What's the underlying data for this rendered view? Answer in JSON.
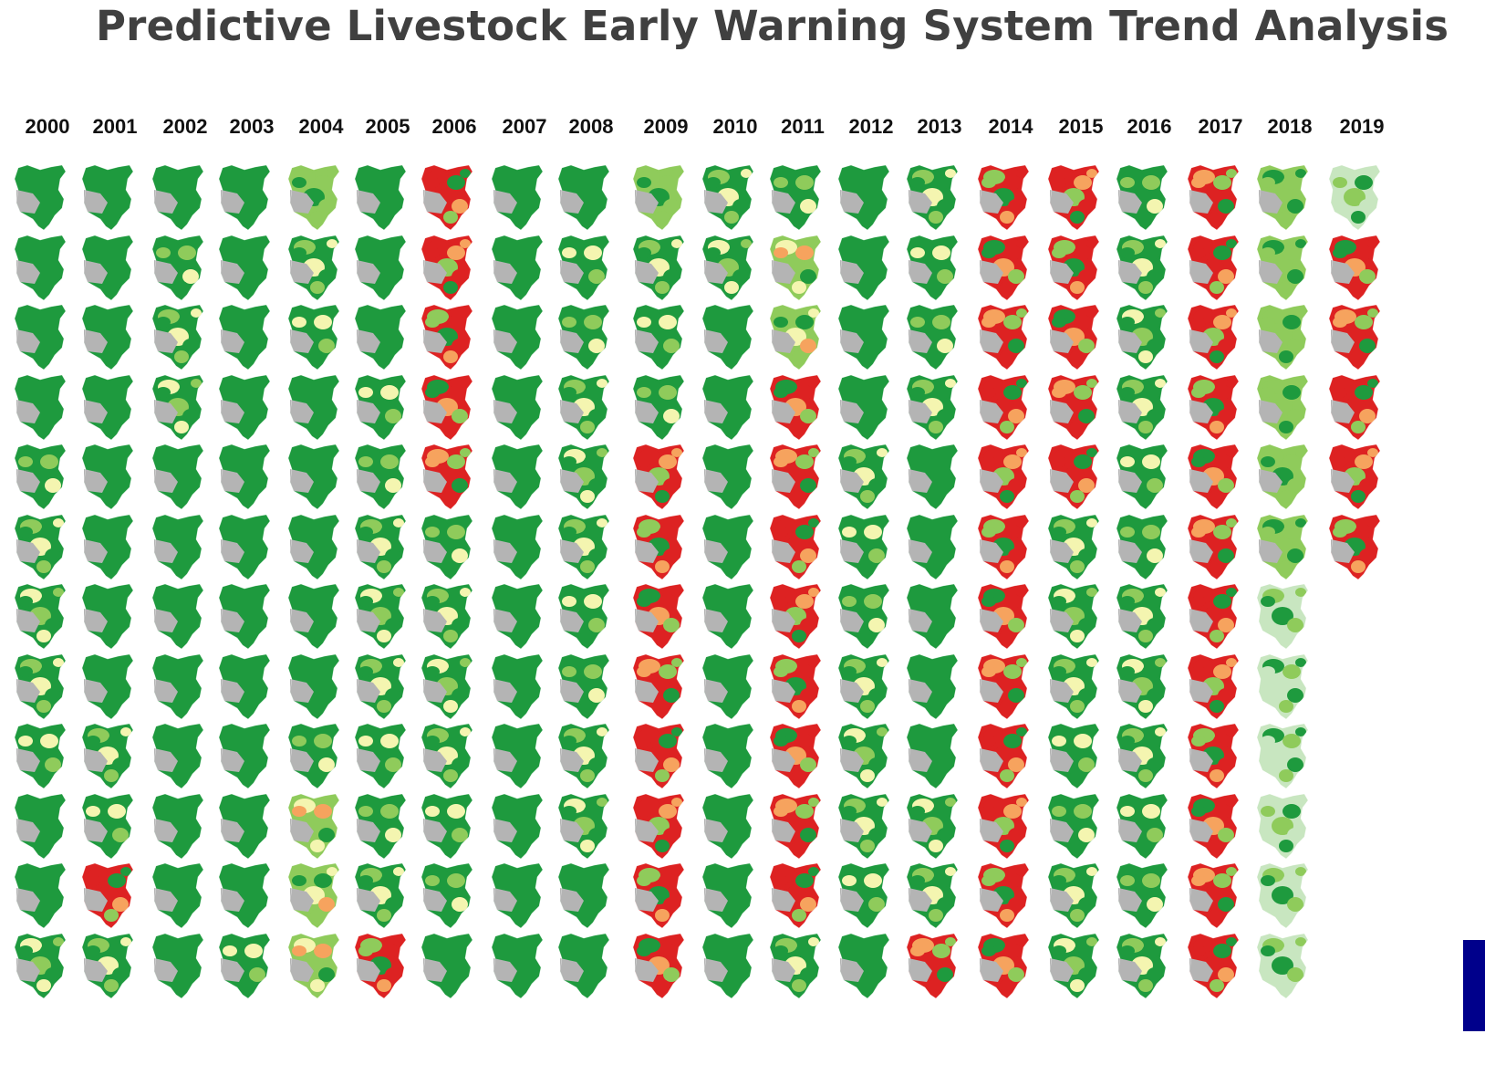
{
  "title": "Predictive Livestock Early Warning System Trend Analysis",
  "years": [
    "2000",
    "2001",
    "2002",
    "2003",
    "2004",
    "2005",
    "2006",
    "2007",
    "2008",
    "2009",
    "2010",
    "2011",
    "2012",
    "2013",
    "2014",
    "2015",
    "2016",
    "2017",
    "2018",
    "2019"
  ],
  "colors": {
    "dark_green": "#1e9a3e",
    "light_green": "#8fcb5b",
    "pale_yellow": "#f4f5b0",
    "orange": "#f6a35e",
    "red": "#dd2222",
    "gray": "#b4b4b4",
    "navy": "#00008b",
    "pale_green_2019": "#c8e6c0"
  },
  "map_condition_grid": [
    [
      "G",
      "G",
      "G",
      "G",
      "L",
      "G",
      "R",
      "G",
      "G",
      "L",
      "M",
      "M",
      "G",
      "M",
      "R",
      "R",
      "M",
      "R",
      "L",
      "P"
    ],
    [
      "G",
      "G",
      "M",
      "G",
      "M",
      "G",
      "R",
      "G",
      "M",
      "M",
      "M",
      "Y",
      "G",
      "M",
      "R",
      "R",
      "M",
      "R",
      "L",
      "R"
    ],
    [
      "G",
      "G",
      "M",
      "G",
      "M",
      "G",
      "R",
      "G",
      "M",
      "M",
      "G",
      "Y",
      "G",
      "M",
      "R",
      "R",
      "M",
      "R",
      "L",
      "R"
    ],
    [
      "G",
      "G",
      "M",
      "G",
      "G",
      "M",
      "R",
      "G",
      "M",
      "M",
      "G",
      "R",
      "G",
      "M",
      "R",
      "R",
      "M",
      "R",
      "L",
      "R"
    ],
    [
      "M",
      "G",
      "G",
      "G",
      "G",
      "M",
      "R",
      "G",
      "M",
      "R",
      "G",
      "R",
      "M",
      "G",
      "R",
      "R",
      "M",
      "R",
      "L",
      "R"
    ],
    [
      "M",
      "G",
      "G",
      "G",
      "G",
      "M",
      "M",
      "G",
      "M",
      "R",
      "G",
      "R",
      "M",
      "G",
      "R",
      "M",
      "M",
      "R",
      "L",
      "R"
    ],
    [
      "M",
      "G",
      "G",
      "G",
      "G",
      "M",
      "M",
      "G",
      "M",
      "R",
      "G",
      "R",
      "M",
      "G",
      "R",
      "M",
      "M",
      "R",
      "P",
      ""
    ],
    [
      "M",
      "G",
      "G",
      "G",
      "G",
      "M",
      "M",
      "G",
      "M",
      "R",
      "G",
      "R",
      "M",
      "G",
      "R",
      "M",
      "M",
      "R",
      "P",
      ""
    ],
    [
      "M",
      "M",
      "G",
      "G",
      "M",
      "M",
      "M",
      "G",
      "M",
      "R",
      "G",
      "R",
      "M",
      "G",
      "R",
      "M",
      "M",
      "R",
      "P",
      ""
    ],
    [
      "G",
      "M",
      "G",
      "G",
      "Y",
      "M",
      "M",
      "G",
      "M",
      "R",
      "G",
      "R",
      "M",
      "M",
      "R",
      "M",
      "M",
      "R",
      "P",
      ""
    ],
    [
      "G",
      "R",
      "G",
      "G",
      "Y",
      "M",
      "M",
      "G",
      "G",
      "R",
      "G",
      "R",
      "M",
      "M",
      "R",
      "M",
      "M",
      "R",
      "P",
      ""
    ],
    [
      "M",
      "M",
      "G",
      "M",
      "Y",
      "R",
      "G",
      "G",
      "G",
      "R",
      "G",
      "M",
      "G",
      "R",
      "R",
      "M",
      "M",
      "R",
      "P",
      ""
    ]
  ]
}
